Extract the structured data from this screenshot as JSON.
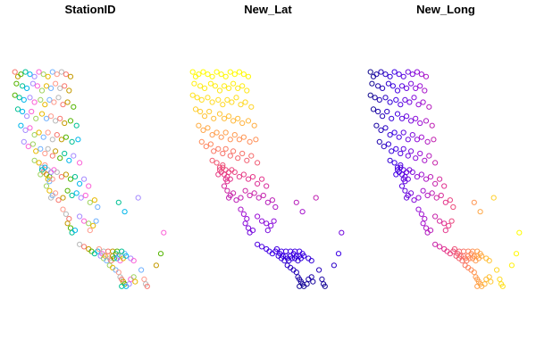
{
  "chart_data": [
    {
      "type": "scatter",
      "title": "StationID",
      "color_scale": "categorical",
      "palette": [
        "#F8766D",
        "#C49A00",
        "#53B400",
        "#00C094",
        "#00B6EB",
        "#A58AFF",
        "#FB61D7",
        "#9FD35F",
        "#E7B800",
        "#6FB1FF",
        "#FF9A8B",
        "#B7B7B7"
      ]
    },
    {
      "type": "scatter",
      "title": "New_Lat",
      "color_scale": "continuous",
      "gradient": [
        "#0D0887",
        "#3A00E5",
        "#9A10D8",
        "#E3338F",
        "#FF8A5C",
        "#FFD52A",
        "#FFFF00"
      ],
      "color_variable_range": [
        32.5,
        42.0
      ]
    },
    {
      "type": "scatter",
      "title": "New_Long",
      "color_scale": "continuous",
      "gradient": [
        "#0D0887",
        "#3A00E5",
        "#9A10D8",
        "#E3338F",
        "#FF8A5C",
        "#FFD52A",
        "#FFFF00"
      ],
      "color_variable_range": [
        -124.3,
        -114.2
      ]
    }
  ],
  "geo_extent": {
    "lon": [
      -124.3,
      -114.2
    ],
    "lat": [
      32.5,
      42.0
    ]
  },
  "points": [
    [
      -124.2,
      41.9
    ],
    [
      -124.0,
      41.7
    ],
    [
      -123.8,
      41.8
    ],
    [
      -123.5,
      41.9
    ],
    [
      -123.2,
      41.8
    ],
    [
      -122.9,
      41.7
    ],
    [
      -122.6,
      41.9
    ],
    [
      -122.3,
      41.8
    ],
    [
      -122.0,
      41.7
    ],
    [
      -121.7,
      41.9
    ],
    [
      -121.4,
      41.8
    ],
    [
      -121.1,
      41.9
    ],
    [
      -120.8,
      41.8
    ],
    [
      -120.5,
      41.7
    ],
    [
      -124.1,
      41.4
    ],
    [
      -123.7,
      41.3
    ],
    [
      -123.4,
      41.2
    ],
    [
      -123.0,
      41.4
    ],
    [
      -122.7,
      41.3
    ],
    [
      -122.4,
      41.1
    ],
    [
      -122.1,
      41.3
    ],
    [
      -121.8,
      41.2
    ],
    [
      -121.5,
      41.4
    ],
    [
      -121.2,
      41.2
    ],
    [
      -120.9,
      41.3
    ],
    [
      -120.6,
      41.1
    ],
    [
      -124.2,
      40.9
    ],
    [
      -123.9,
      40.8
    ],
    [
      -123.6,
      40.7
    ],
    [
      -123.2,
      40.8
    ],
    [
      -122.9,
      40.6
    ],
    [
      -122.5,
      40.7
    ],
    [
      -122.2,
      40.5
    ],
    [
      -121.9,
      40.7
    ],
    [
      -121.6,
      40.6
    ],
    [
      -121.3,
      40.8
    ],
    [
      -121.0,
      40.5
    ],
    [
      -120.7,
      40.6
    ],
    [
      -120.3,
      40.4
    ],
    [
      -124.0,
      40.3
    ],
    [
      -123.7,
      40.2
    ],
    [
      -123.4,
      40.0
    ],
    [
      -123.1,
      40.2
    ],
    [
      -122.8,
      39.9
    ],
    [
      -122.4,
      40.1
    ],
    [
      -122.1,
      39.9
    ],
    [
      -121.8,
      40.0
    ],
    [
      -121.5,
      39.8
    ],
    [
      -121.2,
      39.9
    ],
    [
      -120.9,
      39.7
    ],
    [
      -120.5,
      39.8
    ],
    [
      -120.1,
      39.6
    ],
    [
      -123.8,
      39.6
    ],
    [
      -123.5,
      39.4
    ],
    [
      -123.2,
      39.5
    ],
    [
      -122.9,
      39.2
    ],
    [
      -122.6,
      39.3
    ],
    [
      -122.3,
      39.1
    ],
    [
      -122.0,
      39.3
    ],
    [
      -121.7,
      39.0
    ],
    [
      -121.4,
      39.2
    ],
    [
      -121.1,
      39.0
    ],
    [
      -120.8,
      39.1
    ],
    [
      -120.4,
      38.9
    ],
    [
      -120.0,
      39.0
    ],
    [
      -123.6,
      38.9
    ],
    [
      -123.3,
      38.7
    ],
    [
      -123.0,
      38.8
    ],
    [
      -122.8,
      38.5
    ],
    [
      -122.5,
      38.6
    ],
    [
      -122.2,
      38.4
    ],
    [
      -122.0,
      38.6
    ],
    [
      -121.7,
      38.3
    ],
    [
      -121.5,
      38.5
    ],
    [
      -121.2,
      38.2
    ],
    [
      -120.9,
      38.4
    ],
    [
      -120.6,
      38.1
    ],
    [
      -120.3,
      38.3
    ],
    [
      -119.9,
      38.0
    ],
    [
      -122.9,
      38.1
    ],
    [
      -122.6,
      38.0
    ],
    [
      -122.4,
      37.8
    ],
    [
      -122.2,
      37.9
    ],
    [
      -122.0,
      37.7
    ],
    [
      -122.3,
      37.6
    ],
    [
      -122.1,
      37.5
    ],
    [
      -121.9,
      37.4
    ],
    [
      -122.4,
      37.7
    ],
    [
      -122.2,
      37.8
    ],
    [
      -121.8,
      37.6
    ],
    [
      -121.6,
      37.7
    ],
    [
      -122.5,
      37.5
    ],
    [
      -122.0,
      37.3
    ],
    [
      -121.9,
      37.2
    ],
    [
      -121.7,
      37.3
    ],
    [
      -121.4,
      37.6
    ],
    [
      -121.1,
      37.4
    ],
    [
      -120.8,
      37.5
    ],
    [
      -120.5,
      37.3
    ],
    [
      -120.2,
      37.4
    ],
    [
      -119.9,
      37.1
    ],
    [
      -119.6,
      37.3
    ],
    [
      -119.3,
      37.0
    ],
    [
      -122.1,
      37.0
    ],
    [
      -121.9,
      36.8
    ],
    [
      -121.7,
      36.6
    ],
    [
      -121.5,
      36.7
    ],
    [
      -121.8,
      36.5
    ],
    [
      -121.3,
      36.4
    ],
    [
      -121.0,
      36.5
    ],
    [
      -120.7,
      36.8
    ],
    [
      -120.4,
      36.6
    ],
    [
      -120.1,
      36.7
    ],
    [
      -119.8,
      36.5
    ],
    [
      -119.5,
      36.6
    ],
    [
      -119.2,
      36.3
    ],
    [
      -118.9,
      36.4
    ],
    [
      -118.7,
      36.1
    ],
    [
      -121.0,
      36.0
    ],
    [
      -120.8,
      35.8
    ],
    [
      -120.6,
      35.6
    ],
    [
      -120.7,
      35.4
    ],
    [
      -120.5,
      35.2
    ],
    [
      -120.4,
      35.0
    ],
    [
      -120.2,
      35.1
    ],
    [
      -119.9,
      35.7
    ],
    [
      -119.6,
      35.5
    ],
    [
      -119.3,
      35.4
    ],
    [
      -119.0,
      35.3
    ],
    [
      -118.8,
      35.5
    ],
    [
      -119.2,
      35.1
    ],
    [
      -119.9,
      34.5
    ],
    [
      -119.6,
      34.4
    ],
    [
      -119.3,
      34.3
    ],
    [
      -119.1,
      34.2
    ],
    [
      -118.9,
      34.1
    ],
    [
      -118.7,
      34.2
    ],
    [
      -118.5,
      34.0
    ],
    [
      -118.4,
      34.1
    ],
    [
      -118.3,
      33.9
    ],
    [
      -118.2,
      34.0
    ],
    [
      -118.1,
      33.8
    ],
    [
      -118.0,
      34.0
    ],
    [
      -117.9,
      33.9
    ],
    [
      -117.8,
      33.8
    ],
    [
      -117.7,
      34.0
    ],
    [
      -117.6,
      33.9
    ],
    [
      -117.5,
      34.1
    ],
    [
      -117.4,
      33.9
    ],
    [
      -117.3,
      34.0
    ],
    [
      -117.2,
      33.8
    ],
    [
      -117.1,
      34.0
    ],
    [
      -117.0,
      33.9
    ],
    [
      -116.9,
      34.1
    ],
    [
      -118.6,
      34.3
    ],
    [
      -118.3,
      34.2
    ],
    [
      -118.0,
      34.2
    ],
    [
      -117.7,
      34.2
    ],
    [
      -117.4,
      34.2
    ],
    [
      -117.1,
      34.2
    ],
    [
      -116.8,
      34.0
    ],
    [
      -116.5,
      33.9
    ],
    [
      -116.3,
      33.8
    ],
    [
      -117.9,
      33.6
    ],
    [
      -117.7,
      33.5
    ],
    [
      -117.5,
      33.4
    ],
    [
      -117.3,
      33.3
    ],
    [
      -117.2,
      33.1
    ],
    [
      -117.1,
      33.0
    ],
    [
      -117.0,
      32.9
    ],
    [
      -116.9,
      32.8
    ],
    [
      -117.1,
      32.7
    ],
    [
      -116.8,
      32.7
    ],
    [
      -116.6,
      32.8
    ],
    [
      -116.5,
      33.0
    ],
    [
      -116.3,
      33.1
    ],
    [
      -116.2,
      32.9
    ],
    [
      -115.8,
      33.4
    ],
    [
      -115.6,
      33.0
    ],
    [
      -115.5,
      32.8
    ],
    [
      -115.4,
      32.7
    ],
    [
      -114.8,
      33.6
    ],
    [
      -114.5,
      34.1
    ],
    [
      -117.3,
      36.3
    ],
    [
      -116.9,
      35.9
    ],
    [
      -116.0,
      36.5
    ],
    [
      -114.3,
      35.0
    ]
  ]
}
